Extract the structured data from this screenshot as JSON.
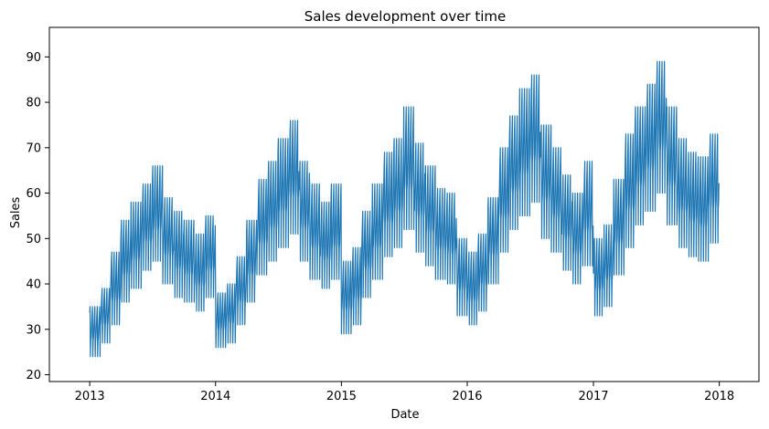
{
  "chart_data": {
    "type": "line",
    "title": "Sales development over time",
    "xlabel": "Date",
    "ylabel": "Sales",
    "xlim": [
      "2012-09-06",
      "2018-04-26"
    ],
    "ylim": [
      18.5,
      96.5
    ],
    "x_tick_labels": [
      "2013",
      "2014",
      "2015",
      "2016",
      "2017",
      "2018"
    ],
    "x_tick_values": [
      "2013-01-01",
      "2014-01-01",
      "2015-01-01",
      "2016-01-01",
      "2017-01-01",
      "2018-01-01"
    ],
    "y_tick_values": [
      20,
      30,
      40,
      50,
      60,
      70,
      80,
      90
    ],
    "grid": false,
    "legend": "none",
    "series": [
      {
        "color": "#1f77b4",
        "band_color": "#a6c8e3",
        "monthly": {
          "x": [
            "2013-01",
            "2013-02",
            "2013-03",
            "2013-04",
            "2013-05",
            "2013-06",
            "2013-07",
            "2013-08",
            "2013-09",
            "2013-10",
            "2013-11",
            "2013-12",
            "2014-01",
            "2014-02",
            "2014-03",
            "2014-04",
            "2014-05",
            "2014-06",
            "2014-07",
            "2014-08",
            "2014-09",
            "2014-10",
            "2014-11",
            "2014-12",
            "2015-01",
            "2015-02",
            "2015-03",
            "2015-04",
            "2015-05",
            "2015-06",
            "2015-07",
            "2015-08",
            "2015-09",
            "2015-10",
            "2015-11",
            "2015-12",
            "2016-01",
            "2016-02",
            "2016-03",
            "2016-04",
            "2016-05",
            "2016-06",
            "2016-07",
            "2016-08",
            "2016-09",
            "2016-10",
            "2016-11",
            "2016-12",
            "2017-01",
            "2017-02",
            "2017-03",
            "2017-04",
            "2017-05",
            "2017-06",
            "2017-07",
            "2017-08",
            "2017-09",
            "2017-10",
            "2017-11",
            "2017-12"
          ],
          "weekly_max": [
            35,
            39,
            47,
            54,
            58,
            62,
            66,
            59,
            56,
            54,
            51,
            55,
            38,
            40,
            46,
            54,
            63,
            67,
            72,
            76,
            67,
            62,
            58,
            62,
            45,
            48,
            56,
            62,
            69,
            72,
            79,
            71,
            66,
            61,
            60,
            50,
            47,
            51,
            59,
            70,
            77,
            83,
            86,
            75,
            70,
            64,
            60,
            67,
            50,
            53,
            63,
            73,
            79,
            84,
            89,
            79,
            72,
            69,
            68,
            73
          ],
          "weekly_min": [
            24,
            27,
            31,
            36,
            39,
            43,
            45,
            40,
            37,
            36,
            34,
            37,
            26,
            27,
            31,
            36,
            42,
            45,
            48,
            51,
            45,
            41,
            39,
            41,
            29,
            31,
            37,
            41,
            46,
            48,
            52,
            47,
            44,
            41,
            40,
            33,
            31,
            34,
            40,
            47,
            52,
            55,
            58,
            50,
            47,
            43,
            40,
            44,
            33,
            35,
            42,
            48,
            53,
            56,
            60,
            53,
            48,
            46,
            45,
            49
          ]
        }
      }
    ]
  }
}
